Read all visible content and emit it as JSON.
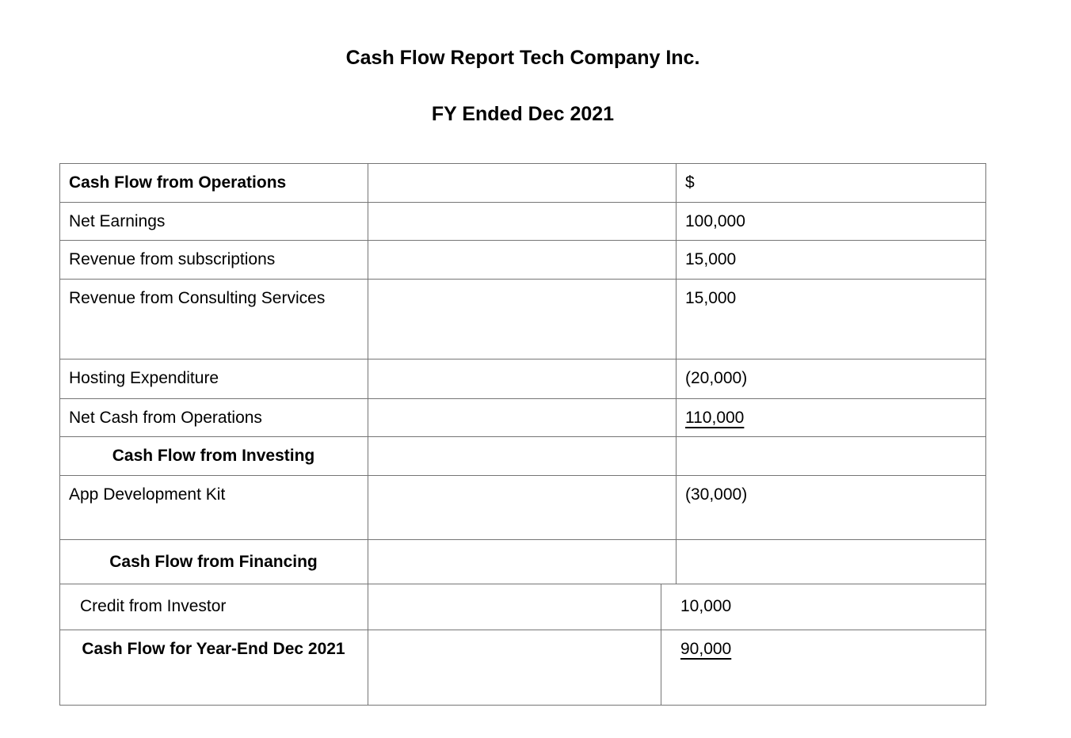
{
  "header": {
    "title": "Cash Flow Report Tech Company Inc.",
    "subtitle": "FY Ended Dec 2021"
  },
  "table": {
    "rows": [
      {
        "label": "Cash Flow from Operations",
        "value": "$"
      },
      {
        "label": "Net Earnings",
        "value": "100,000"
      },
      {
        "label": "Revenue from subscriptions",
        "value": "15,000"
      },
      {
        "label": "Revenue from Consulting Services",
        "value": "15,000"
      },
      {
        "label": "Hosting Expenditure",
        "value": "(20,000)"
      },
      {
        "label": "Net Cash from Operations",
        "value": "110,000"
      },
      {
        "label": "Cash Flow from Investing",
        "value": ""
      },
      {
        "label": "App Development Kit",
        "value": "(30,000)"
      },
      {
        "label": "Cash Flow from Financing",
        "value": ""
      },
      {
        "label": "Credit from Investor",
        "value": "10,000"
      },
      {
        "label": "Cash Flow for Year-End Dec 2021",
        "value": "90,000"
      }
    ]
  },
  "colors": {
    "border": "#757575",
    "text": "#000000",
    "background": "#ffffff"
  }
}
